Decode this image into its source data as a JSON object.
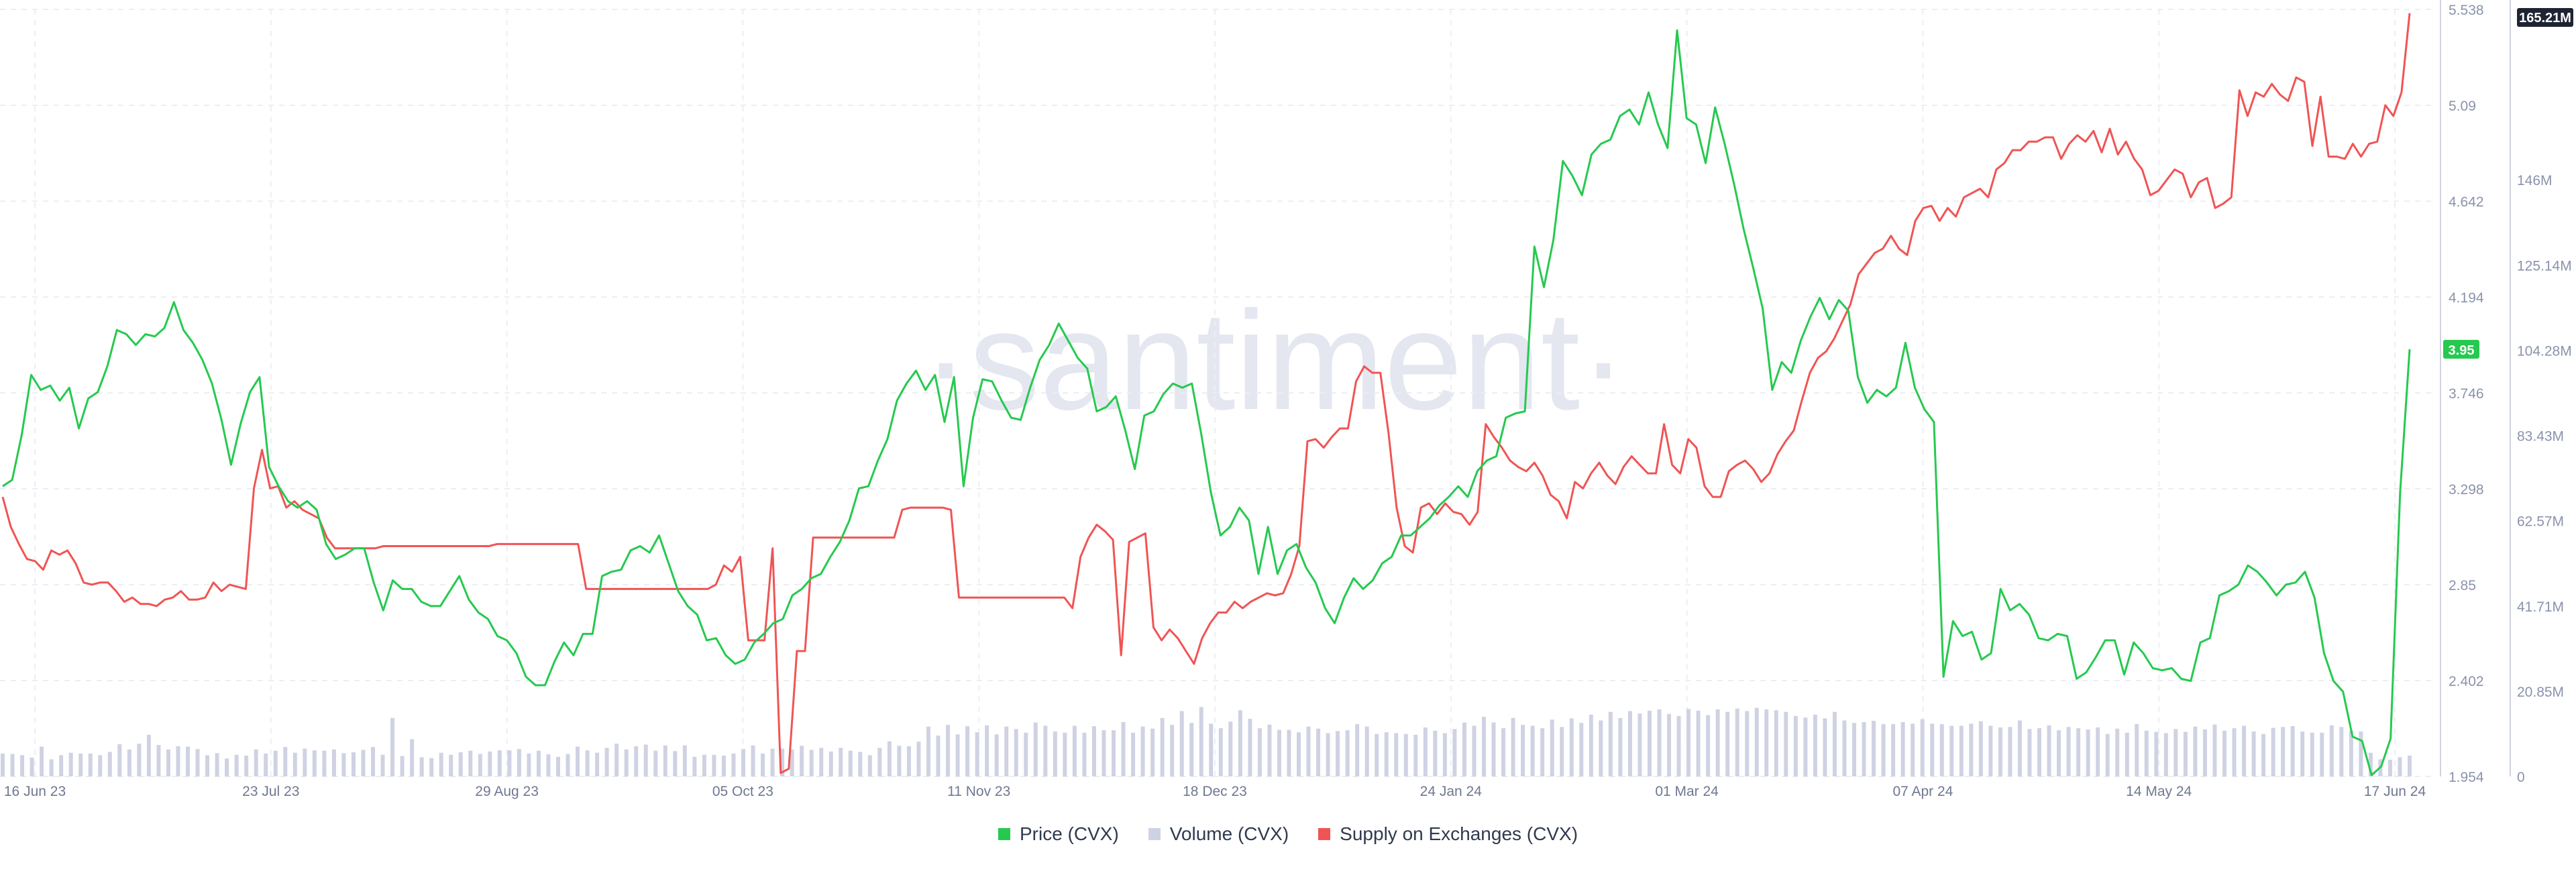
{
  "watermark": "·santiment·",
  "chart_data": {
    "type": "line",
    "x_tick_labels": [
      "16 Jun 23",
      "23 Jul 23",
      "29 Aug 23",
      "05 Oct 23",
      "11 Nov 23",
      "18 Dec 23",
      "24 Jan 24",
      "01 Mar 24",
      "07 Apr 24",
      "14 May 24",
      "17 Jun 24"
    ],
    "price_axis": {
      "ticks": [
        "1.954",
        "2.402",
        "2.85",
        "3.298",
        "3.746",
        "4.194",
        "4.642",
        "5.09",
        "5.538"
      ],
      "range": [
        1.954,
        5.538
      ]
    },
    "volume_axis": {
      "ticks": [
        "0",
        "20.85M",
        "41.71M",
        "62.57M",
        "83.43M",
        "104.28M",
        "125.14M",
        "146M"
      ],
      "range_millions": [
        0,
        187.7
      ]
    },
    "current_price_label": "3.95",
    "current_supply_label": "165.21M",
    "colors": {
      "price": "#26c94f",
      "volume": "#cfd2e3",
      "supply": "#f05454",
      "price_tag_bg": "#26c94f",
      "supply_tag_bg": "#f05454"
    },
    "series": [
      {
        "name": "Price (CVX)",
        "axis": "price",
        "color": "#26c94f",
        "values": [
          3.31,
          3.34,
          3.55,
          3.83,
          3.76,
          3.78,
          3.71,
          3.77,
          3.58,
          3.72,
          3.75,
          3.87,
          4.04,
          4.02,
          3.97,
          4.02,
          4.01,
          4.05,
          4.17,
          4.04,
          3.98,
          3.9,
          3.79,
          3.62,
          3.41,
          3.6,
          3.75,
          3.82,
          3.4,
          3.31,
          3.24,
          3.21,
          3.24,
          3.2,
          3.04,
          2.97,
          2.99,
          3.02,
          3.02,
          2.86,
          2.73,
          2.87,
          2.83,
          2.83,
          2.77,
          2.75,
          2.75,
          2.82,
          2.89,
          2.78,
          2.72,
          2.69,
          2.61,
          2.59,
          2.53,
          2.42,
          2.38,
          2.38,
          2.49,
          2.58,
          2.52,
          2.62,
          2.62,
          2.89,
          2.91,
          2.92,
          3.01,
          3.03,
          3.0,
          3.08,
          2.95,
          2.82,
          2.75,
          2.71,
          2.59,
          2.6,
          2.52,
          2.48,
          2.5,
          2.58,
          2.62,
          2.67,
          2.69,
          2.8,
          2.83,
          2.88,
          2.9,
          2.98,
          3.05,
          3.15,
          3.3,
          3.31,
          3.43,
          3.53,
          3.71,
          3.79,
          3.85,
          3.76,
          3.83,
          3.61,
          3.82,
          3.31,
          3.63,
          3.81,
          3.8,
          3.71,
          3.63,
          3.62,
          3.77,
          3.9,
          3.97,
          4.07,
          3.99,
          3.91,
          3.86,
          3.66,
          3.68,
          3.73,
          3.57,
          3.39,
          3.64,
          3.66,
          3.74,
          3.79,
          3.77,
          3.79,
          3.55,
          3.28,
          3.08,
          3.12,
          3.21,
          3.15,
          2.9,
          3.12,
          2.9,
          3.01,
          3.04,
          2.93,
          2.86,
          2.74,
          2.67,
          2.79,
          2.88,
          2.83,
          2.87,
          2.95,
          2.98,
          3.08,
          3.08,
          3.12,
          3.16,
          3.22,
          3.26,
          3.31,
          3.26,
          3.38,
          3.43,
          3.45,
          3.63,
          3.65,
          3.66,
          4.43,
          4.24,
          4.46,
          4.83,
          4.76,
          4.67,
          4.86,
          4.91,
          4.93,
          5.04,
          5.07,
          5.0,
          5.15,
          5.0,
          4.89,
          5.44,
          5.03,
          5.0,
          4.82,
          5.08,
          4.91,
          4.72,
          4.51,
          4.33,
          4.14,
          3.76,
          3.89,
          3.84,
          3.99,
          4.1,
          4.19,
          4.09,
          4.18,
          4.13,
          3.82,
          3.7,
          3.76,
          3.73,
          3.77,
          3.98,
          3.77,
          3.67,
          3.61,
          2.42,
          2.68,
          2.61,
          2.63,
          2.5,
          2.53,
          2.83,
          2.73,
          2.76,
          2.71,
          2.6,
          2.59,
          2.62,
          2.61,
          2.41,
          2.44,
          2.51,
          2.59,
          2.59,
          2.43,
          2.58,
          2.53,
          2.46,
          2.45,
          2.46,
          2.41,
          2.4,
          2.58,
          2.6,
          2.8,
          2.82,
          2.85,
          2.94,
          2.91,
          2.86,
          2.8,
          2.85,
          2.86,
          2.91,
          2.79,
          2.53,
          2.4,
          2.35,
          2.14,
          2.12,
          1.96,
          2.0,
          2.13,
          3.28,
          3.95
        ]
      },
      {
        "name": "Volume (CVX)",
        "axis": "volume",
        "color": "#cfd2e3",
        "values_millions": [
          5.6,
          5.5,
          5.2,
          4.6,
          7.3,
          4.2,
          5.2,
          5.8,
          5.6,
          5.6,
          5.2,
          6.0,
          7.9,
          6.6,
          8.0,
          10.2,
          7.7,
          6.6,
          7.4,
          7.3,
          6.7,
          5.2,
          5.7,
          4.4,
          5.3,
          5.1,
          6.6,
          5.6,
          6.3,
          7.2,
          5.8,
          6.8,
          6.4,
          6.3,
          6.6,
          5.7,
          5.9,
          6.5,
          7.2,
          5.3,
          14.3,
          5.0,
          9.1,
          4.7,
          4.5,
          5.8,
          5.3,
          5.9,
          6.3,
          5.5,
          6.1,
          6.4,
          6.4,
          6.7,
          5.6,
          6.3,
          5.4,
          4.8,
          5.5,
          7.3,
          6.4,
          5.8,
          7.0,
          8.0,
          6.6,
          7.4,
          7.8,
          6.3,
          7.6,
          6.2,
          7.6,
          4.8,
          5.3,
          5.3,
          5.1,
          5.6,
          6.7,
          7.6,
          5.6,
          6.8,
          6.8,
          6.6,
          7.5,
          6.5,
          7.0,
          6.1,
          7.0,
          6.3,
          6.0,
          5.2,
          7.0,
          8.6,
          7.5,
          7.4,
          8.5,
          12.2,
          10.0,
          12.6,
          10.3,
          12.3,
          10.8,
          12.5,
          10.3,
          12.2,
          11.6,
          10.7,
          13.2,
          12.4,
          11.0,
          10.7,
          12.4,
          10.7,
          12.3,
          11.3,
          11.3,
          13.3,
          10.7,
          12.2,
          11.7,
          14.3,
          12.6,
          16.0,
          13.1,
          17.0,
          12.9,
          11.8,
          13.4,
          16.2,
          14.1,
          11.8,
          12.7,
          11.4,
          11.4,
          10.8,
          12.2,
          11.7,
          10.6,
          11.1,
          11.3,
          12.8,
          12.2,
          10.4,
          10.8,
          10.6,
          10.4,
          10.2,
          12.0,
          11.2,
          10.6,
          11.6,
          13.2,
          12.4,
          14.6,
          13.2,
          11.8,
          14.3,
          12.6,
          12.4,
          11.8,
          13.9,
          12.1,
          14.2,
          13.1,
          15.1,
          13.7,
          15.8,
          14.3,
          16.0,
          15.4,
          16.1,
          16.4,
          15.3,
          14.8,
          16.5,
          16.1,
          15.0,
          16.4,
          15.8,
          16.6,
          16.0,
          16.8,
          16.4,
          16.2,
          15.8,
          14.8,
          14.4,
          15.1,
          14.2,
          15.8,
          13.7,
          13.1,
          13.3,
          13.6,
          12.8,
          12.8,
          13.3,
          12.9,
          14.0,
          12.9,
          12.8,
          12.4,
          12.4,
          12.9,
          13.5,
          12.4,
          12.0,
          12.1,
          13.7,
          11.6,
          11.8,
          12.5,
          11.3,
          12.1,
          11.8,
          11.5,
          12.0,
          10.4,
          11.7,
          10.7,
          12.8,
          11.2,
          10.9,
          10.6,
          11.6,
          10.9,
          12.2,
          11.5,
          12.7,
          11.2,
          11.8,
          12.4,
          11.0,
          10.4,
          11.9,
          12.1,
          12.3,
          11.0,
          10.7,
          10.7,
          12.5,
          12.1,
          11.2,
          11.0,
          5.8,
          4.2,
          4.1,
          4.7,
          5.1
        ]
      },
      {
        "name": "Supply on Exchanges (CVX)",
        "axis": "supply",
        "color": "#f05454",
        "values": [
          3.26,
          3.12,
          3.04,
          2.97,
          2.96,
          2.92,
          3.01,
          2.99,
          3.01,
          2.95,
          2.86,
          2.85,
          2.86,
          2.86,
          2.82,
          2.77,
          2.79,
          2.76,
          2.76,
          2.75,
          2.78,
          2.79,
          2.82,
          2.78,
          2.78,
          2.79,
          2.86,
          2.82,
          2.85,
          2.84,
          2.83,
          3.3,
          3.48,
          3.3,
          3.31,
          3.21,
          3.24,
          3.2,
          3.18,
          3.16,
          3.07,
          3.02,
          3.02,
          3.02,
          3.02,
          3.02,
          3.02,
          3.03,
          3.03,
          3.03,
          3.03,
          3.03,
          3.03,
          3.03,
          3.03,
          3.03,
          3.03,
          3.03,
          3.03,
          3.03,
          3.03,
          3.04,
          3.04,
          3.04,
          3.04,
          3.04,
          3.04,
          3.04,
          3.04,
          3.04,
          3.04,
          3.04,
          2.83,
          2.83,
          2.83,
          2.83,
          2.83,
          2.83,
          2.83,
          2.83,
          2.83,
          2.83,
          2.83,
          2.83,
          2.83,
          2.83,
          2.83,
          2.83,
          2.85,
          2.94,
          2.91,
          2.98,
          2.59,
          2.59,
          2.59,
          3.02,
          1.97,
          1.99,
          2.54,
          2.54,
          3.07,
          3.07,
          3.07,
          3.07,
          3.07,
          3.07,
          3.07,
          3.07,
          3.07,
          3.07,
          3.07,
          3.2,
          3.21,
          3.21,
          3.21,
          3.21,
          3.21,
          3.2,
          2.79,
          2.79,
          2.79,
          2.79,
          2.79,
          2.79,
          2.79,
          2.79,
          2.79,
          2.79,
          2.79,
          2.79,
          2.79,
          2.79,
          2.74,
          2.98,
          3.07,
          3.13,
          3.1,
          3.06,
          2.52,
          3.05,
          3.07,
          3.09,
          2.65,
          2.59,
          2.64,
          2.6,
          2.54,
          2.48,
          2.6,
          2.67,
          2.72,
          2.72,
          2.77,
          2.74,
          2.77,
          2.79,
          2.81,
          2.8,
          2.81,
          2.9,
          3.03,
          3.52,
          3.53,
          3.49,
          3.54,
          3.58,
          3.58,
          3.8,
          3.87,
          3.84,
          3.84,
          3.56,
          3.21,
          3.03,
          3.0,
          3.21,
          3.23,
          3.18,
          3.23,
          3.19,
          3.18,
          3.13,
          3.19,
          3.6,
          3.54,
          3.49,
          3.43,
          3.4,
          3.38,
          3.42,
          3.36,
          3.27,
          3.24,
          3.16,
          3.33,
          3.3,
          3.37,
          3.42,
          3.36,
          3.32,
          3.4,
          3.45,
          3.41,
          3.37,
          3.37,
          3.6,
          3.41,
          3.37,
          3.53,
          3.49,
          3.31,
          3.26,
          3.26,
          3.38,
          3.41,
          3.43,
          3.39,
          3.33,
          3.37,
          3.46,
          3.52,
          3.57,
          3.71,
          3.84,
          3.91,
          3.94,
          4.0,
          4.08,
          4.16,
          4.3,
          4.35,
          4.4,
          4.42,
          4.48,
          4.42,
          4.39,
          4.55,
          4.61,
          4.62,
          4.55,
          4.61,
          4.57,
          4.66,
          4.68,
          4.7,
          4.66,
          4.79,
          4.82,
          4.88,
          4.88,
          4.92,
          4.92,
          4.94,
          4.94,
          4.84,
          4.91,
          4.95,
          4.92,
          4.97,
          4.87,
          4.98,
          4.86,
          4.92,
          4.84,
          4.79,
          4.67,
          4.69,
          4.74,
          4.79,
          4.77,
          4.66,
          4.73,
          4.75,
          4.61,
          4.63,
          4.66,
          5.16,
          5.04,
          5.15,
          5.13,
          5.19,
          5.14,
          5.11,
          5.22,
          5.2,
          4.9,
          5.13,
          4.85,
          4.85,
          4.84,
          4.91,
          4.85,
          4.91,
          4.92,
          5.09,
          5.04,
          5.15,
          5.52
        ]
      }
    ]
  },
  "legend": [
    {
      "label": "Price (CVX)",
      "color": "#26c94f"
    },
    {
      "label": "Volume (CVX)",
      "color": "#cfd2e3"
    },
    {
      "label": "Supply on Exchanges (CVX)",
      "color": "#f05454"
    }
  ]
}
